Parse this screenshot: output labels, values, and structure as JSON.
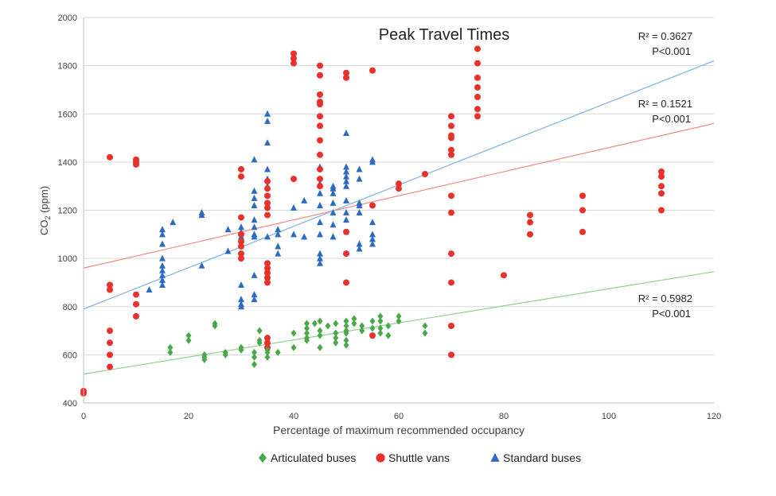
{
  "chart_data": {
    "type": "scatter",
    "title": "Peak Travel Times",
    "xlabel": "Percentage of maximum recommended occupancy",
    "ylabel": "CO₂ (ppm)",
    "xlim": [
      0,
      120
    ],
    "ylim": [
      400,
      2000
    ],
    "xticks": [
      0,
      20,
      40,
      60,
      80,
      100,
      120
    ],
    "yticks": [
      400,
      600,
      800,
      1000,
      1200,
      1400,
      1600,
      1800,
      2000
    ],
    "grid": "horizontal",
    "legend_position": "bottom",
    "series": [
      {
        "name": "Articulated buses",
        "marker": "diamond",
        "color": "#4aa84a",
        "trendline": {
          "x": [
            0,
            120
          ],
          "y": [
            520,
            945
          ],
          "color": "#8fd08f",
          "r2_label": "R² = 0.5982",
          "p_label": "P<0.001"
        },
        "points": [
          [
            16.5,
            630
          ],
          [
            16.5,
            610
          ],
          [
            20,
            680
          ],
          [
            20,
            660
          ],
          [
            25,
            730
          ],
          [
            25,
            720
          ],
          [
            27,
            610
          ],
          [
            27,
            600
          ],
          [
            23,
            600
          ],
          [
            23,
            590
          ],
          [
            23,
            580
          ],
          [
            30,
            630
          ],
          [
            30,
            620
          ],
          [
            32.5,
            610
          ],
          [
            32.5,
            590
          ],
          [
            32.5,
            560
          ],
          [
            33.5,
            700
          ],
          [
            33.5,
            660
          ],
          [
            33.5,
            650
          ],
          [
            35,
            620
          ],
          [
            35,
            610
          ],
          [
            35,
            590
          ],
          [
            37,
            610
          ],
          [
            40,
            690
          ],
          [
            40,
            630
          ],
          [
            42.5,
            730
          ],
          [
            42.5,
            710
          ],
          [
            42.5,
            690
          ],
          [
            42.5,
            670
          ],
          [
            42.5,
            660
          ],
          [
            44,
            730
          ],
          [
            45,
            740
          ],
          [
            45,
            700
          ],
          [
            45,
            680
          ],
          [
            45,
            630
          ],
          [
            46.5,
            720
          ],
          [
            48,
            730
          ],
          [
            48,
            690
          ],
          [
            48,
            670
          ],
          [
            48,
            650
          ],
          [
            50,
            740
          ],
          [
            50,
            720
          ],
          [
            50,
            700
          ],
          [
            50,
            690
          ],
          [
            50,
            660
          ],
          [
            50,
            640
          ],
          [
            51.5,
            750
          ],
          [
            51.5,
            730
          ],
          [
            53,
            720
          ],
          [
            53,
            700
          ],
          [
            55,
            740
          ],
          [
            55,
            710
          ],
          [
            56.5,
            760
          ],
          [
            56.5,
            740
          ],
          [
            56.5,
            710
          ],
          [
            56.5,
            690
          ],
          [
            58,
            720
          ],
          [
            58,
            680
          ],
          [
            60,
            760
          ],
          [
            60,
            740
          ],
          [
            65,
            720
          ],
          [
            65,
            690
          ]
        ]
      },
      {
        "name": "Shuttle vans",
        "marker": "circle",
        "color": "#e8312a",
        "trendline": {
          "x": [
            0,
            120
          ],
          "y": [
            960,
            1560
          ],
          "color": "#f08a85",
          "r2_label": "R² = 0.1521",
          "p_label": "P<0.001"
        },
        "points": [
          [
            0,
            440
          ],
          [
            0,
            450
          ],
          [
            5,
            1420
          ],
          [
            5,
            890
          ],
          [
            5,
            870
          ],
          [
            5,
            700
          ],
          [
            5,
            650
          ],
          [
            5,
            600
          ],
          [
            5,
            550
          ],
          [
            10,
            1410
          ],
          [
            10,
            1400
          ],
          [
            10,
            1390
          ],
          [
            10,
            850
          ],
          [
            10,
            810
          ],
          [
            10,
            760
          ],
          [
            30,
            1370
          ],
          [
            30,
            1340
          ],
          [
            30,
            1170
          ],
          [
            30,
            1100
          ],
          [
            30,
            1070
          ],
          [
            30,
            1050
          ],
          [
            30,
            1020
          ],
          [
            30,
            1000
          ],
          [
            35,
            1320
          ],
          [
            35,
            1290
          ],
          [
            35,
            1260
          ],
          [
            35,
            1230
          ],
          [
            35,
            1210
          ],
          [
            35,
            1180
          ],
          [
            35,
            980
          ],
          [
            35,
            960
          ],
          [
            35,
            940
          ],
          [
            35,
            920
          ],
          [
            35,
            900
          ],
          [
            35,
            670
          ],
          [
            35,
            650
          ],
          [
            35,
            630
          ],
          [
            40,
            1850
          ],
          [
            40,
            1830
          ],
          [
            40,
            1810
          ],
          [
            40,
            1330
          ],
          [
            45,
            1800
          ],
          [
            45,
            1760
          ],
          [
            45,
            1680
          ],
          [
            45,
            1650
          ],
          [
            45,
            1640
          ],
          [
            45,
            1590
          ],
          [
            45,
            1550
          ],
          [
            45,
            1490
          ],
          [
            45,
            1430
          ],
          [
            45,
            1370
          ],
          [
            45,
            1330
          ],
          [
            45,
            1300
          ],
          [
            50,
            1770
          ],
          [
            50,
            1750
          ],
          [
            50,
            1110
          ],
          [
            50,
            1020
          ],
          [
            50,
            900
          ],
          [
            55,
            1780
          ],
          [
            55,
            1220
          ],
          [
            55,
            680
          ],
          [
            60,
            1310
          ],
          [
            60,
            1290
          ],
          [
            65,
            1350
          ],
          [
            70,
            1590
          ],
          [
            70,
            1550
          ],
          [
            70,
            1510
          ],
          [
            70,
            1500
          ],
          [
            70,
            1450
          ],
          [
            70,
            1430
          ],
          [
            70,
            1260
          ],
          [
            70,
            1190
          ],
          [
            70,
            1020
          ],
          [
            70,
            900
          ],
          [
            70,
            720
          ],
          [
            70,
            600
          ],
          [
            75,
            1870
          ],
          [
            75,
            1810
          ],
          [
            75,
            1750
          ],
          [
            75,
            1710
          ],
          [
            75,
            1670
          ],
          [
            75,
            1620
          ],
          [
            75,
            1590
          ],
          [
            80,
            930
          ],
          [
            85,
            1180
          ],
          [
            85,
            1150
          ],
          [
            85,
            1100
          ],
          [
            95,
            1260
          ],
          [
            95,
            1200
          ],
          [
            95,
            1110
          ],
          [
            110,
            1360
          ],
          [
            110,
            1340
          ],
          [
            110,
            1300
          ],
          [
            110,
            1270
          ],
          [
            110,
            1200
          ]
        ]
      },
      {
        "name": "Standard buses",
        "marker": "triangle",
        "color": "#2e6bbf",
        "trendline": {
          "x": [
            0,
            120
          ],
          "y": [
            790,
            1820
          ],
          "color": "#7fb0e0",
          "r2_label": "R² = 0.3627",
          "p_label": "P<0.001"
        },
        "points": [
          [
            12.5,
            870
          ],
          [
            15,
            1120
          ],
          [
            15,
            1100
          ],
          [
            15,
            1060
          ],
          [
            15,
            1000
          ],
          [
            15,
            970
          ],
          [
            15,
            950
          ],
          [
            15,
            930
          ],
          [
            15,
            910
          ],
          [
            15,
            890
          ],
          [
            17,
            1150
          ],
          [
            22.5,
            1190
          ],
          [
            22.5,
            1180
          ],
          [
            22.5,
            970
          ],
          [
            27.5,
            1120
          ],
          [
            27.5,
            1030
          ],
          [
            30,
            1130
          ],
          [
            30,
            1110
          ],
          [
            30,
            1090
          ],
          [
            30,
            890
          ],
          [
            30,
            830
          ],
          [
            30,
            810
          ],
          [
            30,
            800
          ],
          [
            32.5,
            1410
          ],
          [
            32.5,
            1280
          ],
          [
            32.5,
            1250
          ],
          [
            32.5,
            1220
          ],
          [
            32.5,
            1160
          ],
          [
            32.5,
            1130
          ],
          [
            32.5,
            1100
          ],
          [
            32.5,
            1090
          ],
          [
            32.5,
            930
          ],
          [
            32.5,
            850
          ],
          [
            32.5,
            830
          ],
          [
            35,
            1600
          ],
          [
            35,
            1570
          ],
          [
            35,
            1480
          ],
          [
            35,
            1370
          ],
          [
            35,
            1330
          ],
          [
            35,
            1300
          ],
          [
            35,
            1090
          ],
          [
            37,
            1120
          ],
          [
            37,
            1100
          ],
          [
            37,
            1050
          ],
          [
            37,
            1020
          ],
          [
            40,
            1210
          ],
          [
            40,
            1100
          ],
          [
            42,
            1240
          ],
          [
            42,
            1090
          ],
          [
            45,
            1380
          ],
          [
            45,
            1310
          ],
          [
            45,
            1270
          ],
          [
            45,
            1220
          ],
          [
            45,
            1150
          ],
          [
            45,
            1100
          ],
          [
            45,
            1020
          ],
          [
            45,
            1000
          ],
          [
            45,
            980
          ],
          [
            47.5,
            1300
          ],
          [
            47.5,
            1290
          ],
          [
            47.5,
            1270
          ],
          [
            47.5,
            1230
          ],
          [
            47.5,
            1190
          ],
          [
            47.5,
            1140
          ],
          [
            47.5,
            1090
          ],
          [
            50,
            1520
          ],
          [
            50,
            1380
          ],
          [
            50,
            1360
          ],
          [
            50,
            1340
          ],
          [
            50,
            1320
          ],
          [
            50,
            1300
          ],
          [
            50,
            1240
          ],
          [
            50,
            1190
          ],
          [
            50,
            1160
          ],
          [
            52.5,
            1370
          ],
          [
            52.5,
            1330
          ],
          [
            52.5,
            1230
          ],
          [
            52.5,
            1220
          ],
          [
            52.5,
            1190
          ],
          [
            52.5,
            1060
          ],
          [
            52.5,
            1040
          ],
          [
            55,
            1410
          ],
          [
            55,
            1400
          ],
          [
            55,
            1150
          ],
          [
            55,
            1100
          ],
          [
            55,
            1080
          ],
          [
            55,
            1060
          ]
        ]
      }
    ]
  }
}
